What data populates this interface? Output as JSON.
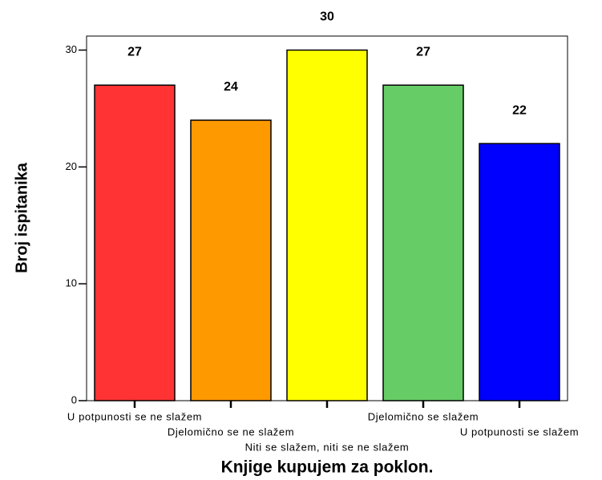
{
  "chart_data": {
    "type": "bar",
    "categories": [
      "U potpunosti se ne slažem",
      "Djelomično se ne slažem",
      "Niti se slažem, niti se ne slažem",
      "Djelomično se slažem",
      "U potpunosti se slažem"
    ],
    "values": [
      27,
      24,
      30,
      27,
      22
    ],
    "colors": [
      "#ff3333",
      "#ff9900",
      "#ffff00",
      "#66cc66",
      "#0000ff"
    ],
    "ylim": [
      0,
      31.2
    ],
    "yticks": [
      0,
      10,
      20,
      30
    ],
    "y_label": "Broj ispitanika",
    "x_label": "Knjige kupujem za poklon."
  }
}
